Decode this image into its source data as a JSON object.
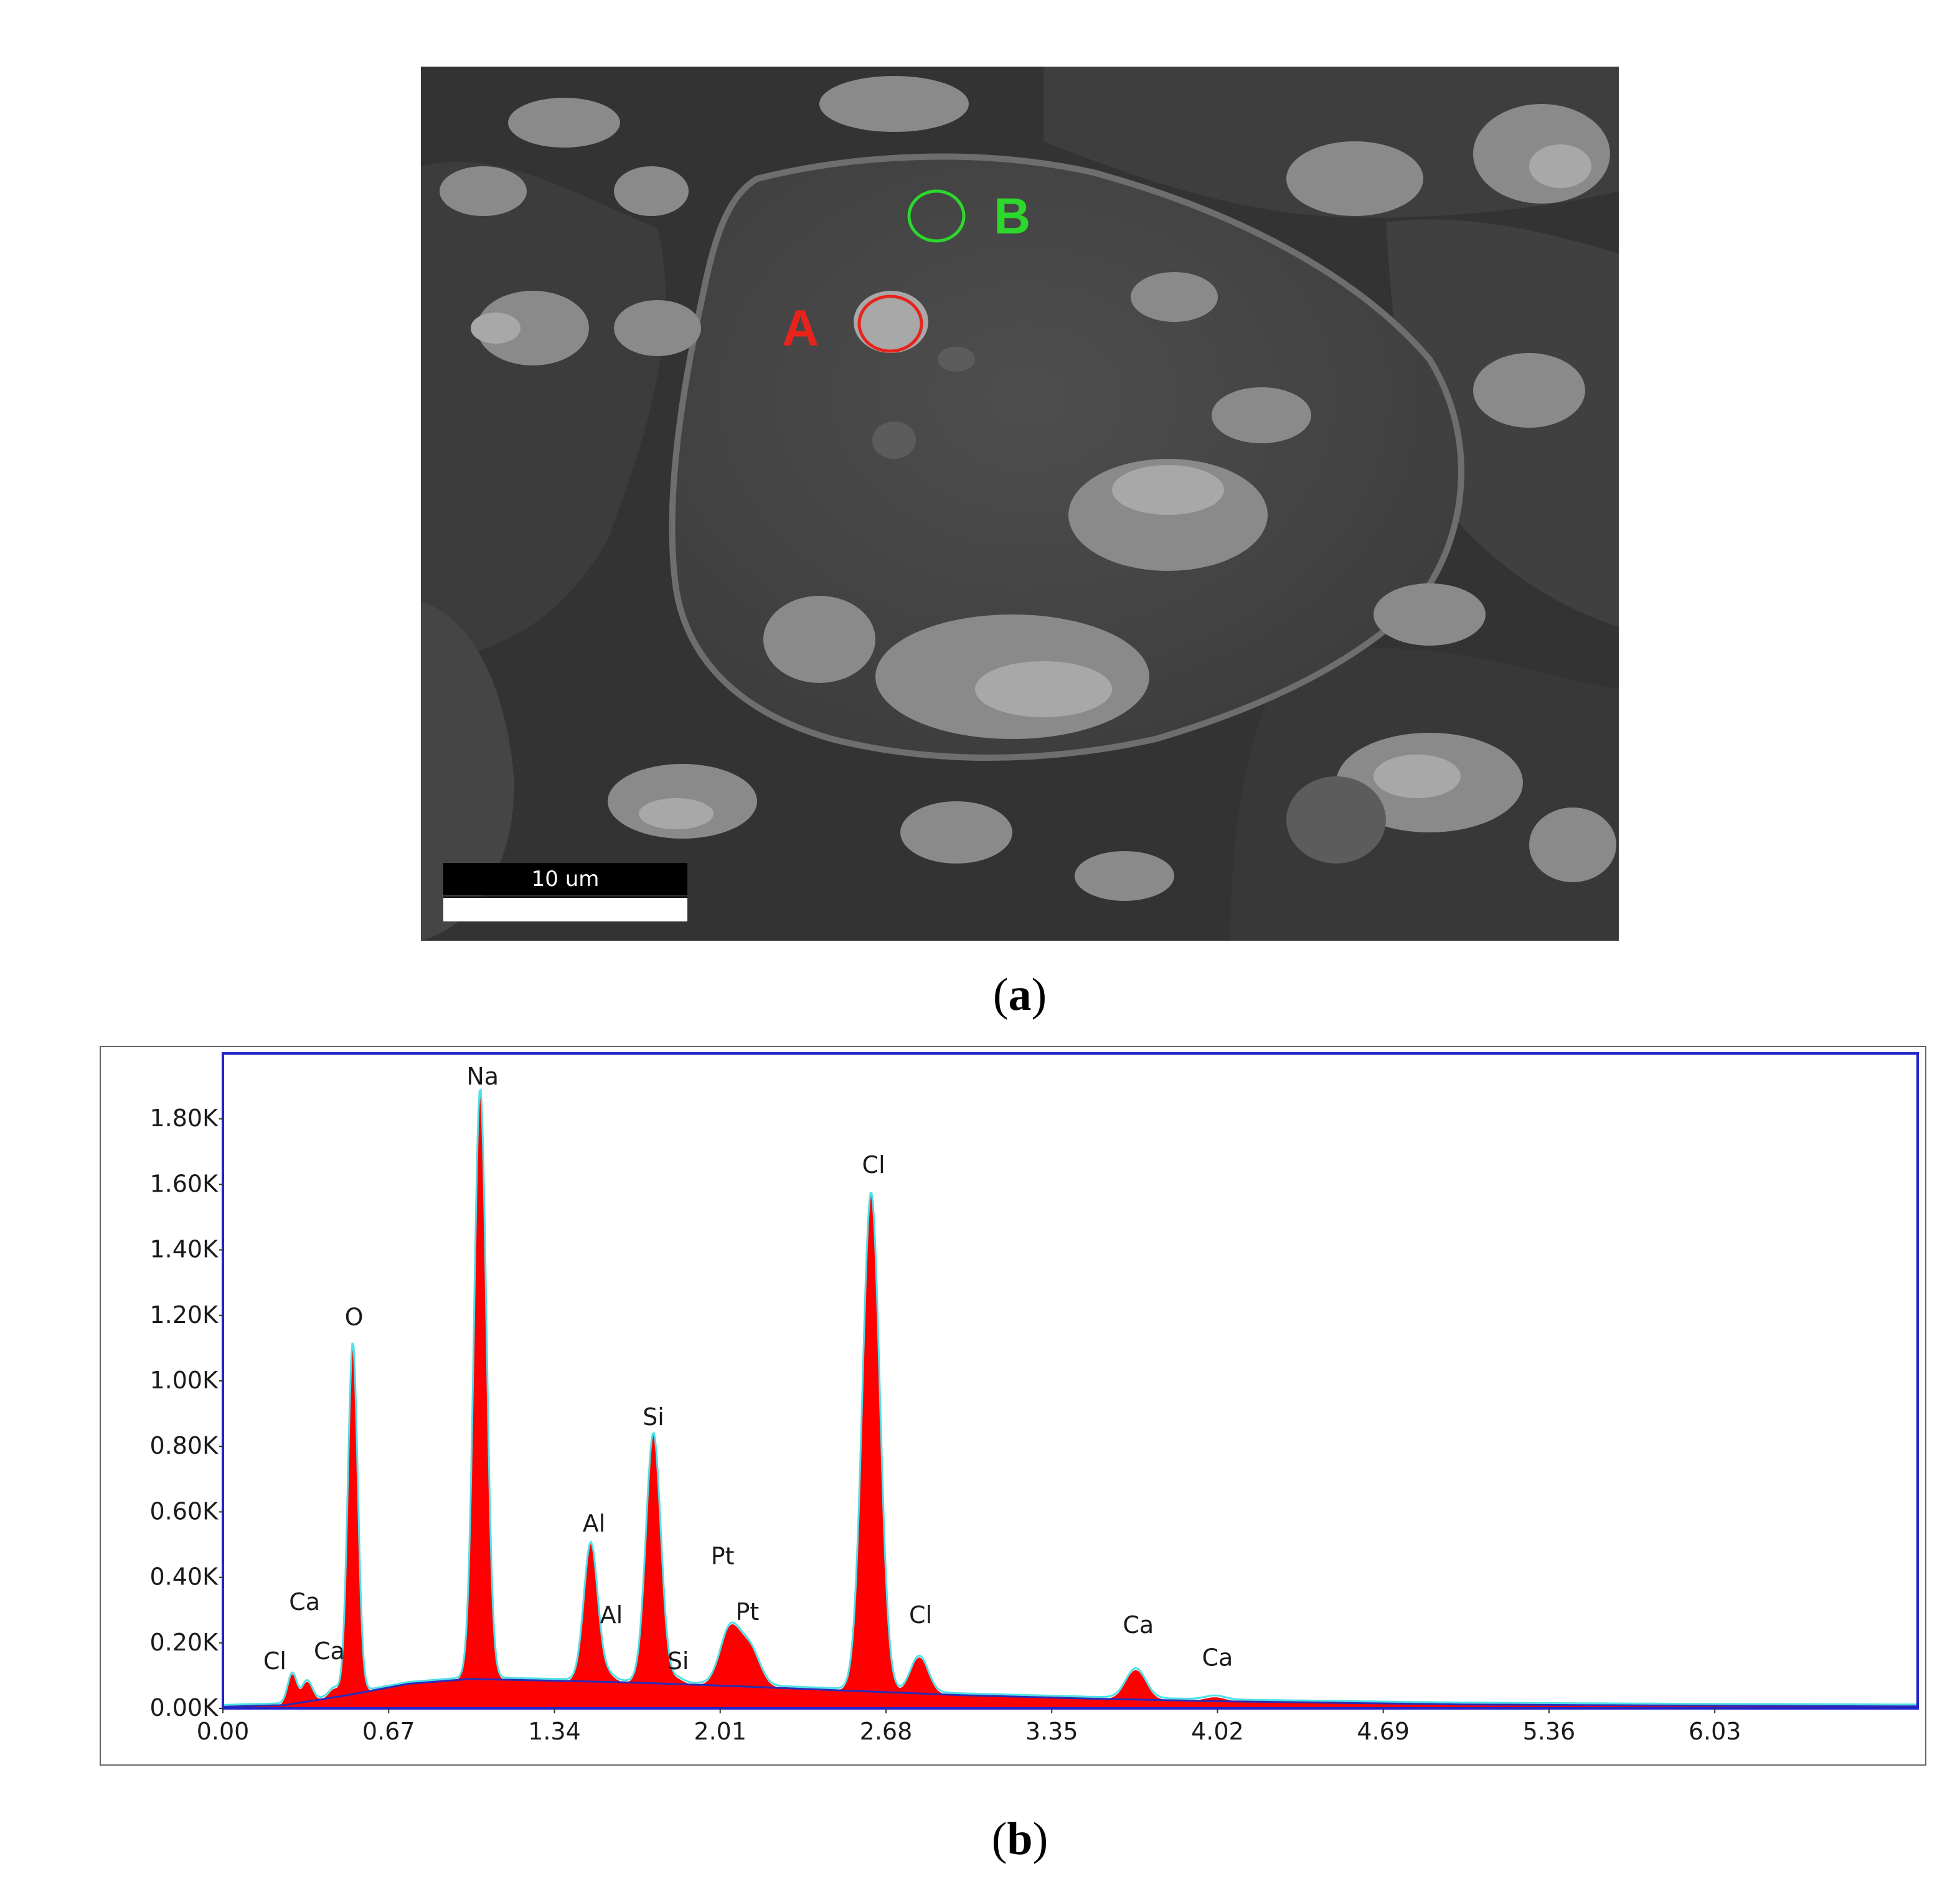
{
  "figure": {
    "panel_a_label": "a",
    "panel_b_label": "b"
  },
  "sem_image": {
    "scale_bar_label": "10 um",
    "points": [
      {
        "label": "A",
        "color": "#e8231c"
      },
      {
        "label": "B",
        "color": "#2bd82b"
      }
    ]
  },
  "chart_data": {
    "type": "area",
    "xlabel": "",
    "ylabel": "",
    "xlim": [
      0,
      6.85
    ],
    "ylim": [
      0,
      2000
    ],
    "x_ticks": [
      {
        "value": 0.0,
        "label": "0.00"
      },
      {
        "value": 0.67,
        "label": "0.67"
      },
      {
        "value": 1.34,
        "label": "1.34"
      },
      {
        "value": 2.01,
        "label": "2.01"
      },
      {
        "value": 2.68,
        "label": "2.68"
      },
      {
        "value": 3.35,
        "label": "3.35"
      },
      {
        "value": 4.02,
        "label": "4.02"
      },
      {
        "value": 4.69,
        "label": "4.69"
      },
      {
        "value": 5.36,
        "label": "5.36"
      },
      {
        "value": 6.03,
        "label": "6.03"
      }
    ],
    "y_ticks": [
      {
        "value": 0,
        "label": "0.00K"
      },
      {
        "value": 200,
        "label": "0.20K"
      },
      {
        "value": 400,
        "label": "0.40K"
      },
      {
        "value": 600,
        "label": "0.60K"
      },
      {
        "value": 800,
        "label": "0.80K"
      },
      {
        "value": 1000,
        "label": "1.00K"
      },
      {
        "value": 1200,
        "label": "1.20K"
      },
      {
        "value": 1400,
        "label": "1.40K"
      },
      {
        "value": 1600,
        "label": "1.60K"
      },
      {
        "value": 1800,
        "label": "1.80K"
      }
    ],
    "peaks": [
      {
        "element": "Cl",
        "energy": 0.28,
        "counts": 90,
        "width": 0.018
      },
      {
        "element": "Ca",
        "energy": 0.34,
        "counts": 60,
        "width": 0.02
      },
      {
        "element": "Ca",
        "energy": 0.45,
        "counts": 25,
        "width": 0.02
      },
      {
        "element": "O",
        "energy": 0.525,
        "counts": 1070,
        "width": 0.02
      },
      {
        "element": "Na",
        "energy": 1.04,
        "counts": 1800,
        "width": 0.025
      },
      {
        "element": "Al",
        "energy": 1.487,
        "counts": 420,
        "width": 0.028
      },
      {
        "element": "Al",
        "energy": 1.557,
        "counts": 20,
        "width": 0.025
      },
      {
        "element": "Si",
        "energy": 1.74,
        "counts": 760,
        "width": 0.03
      },
      {
        "element": "Si",
        "energy": 1.836,
        "counts": 15,
        "width": 0.025
      },
      {
        "element": "Pt",
        "energy": 2.05,
        "counts": 170,
        "width": 0.04
      },
      {
        "element": "Pt",
        "energy": 2.13,
        "counts": 110,
        "width": 0.04
      },
      {
        "element": "Cl",
        "energy": 2.62,
        "counts": 1520,
        "width": 0.035
      },
      {
        "element": "Cl",
        "energy": 2.815,
        "counts": 110,
        "width": 0.035
      },
      {
        "element": "Ca",
        "energy": 3.69,
        "counts": 90,
        "width": 0.04
      },
      {
        "element": "Ca",
        "energy": 4.01,
        "counts": 12,
        "width": 0.04
      }
    ],
    "peak_labels": [
      {
        "text": "Cl",
        "energy": 0.21,
        "counts": 120
      },
      {
        "text": "Ca",
        "energy": 0.33,
        "counts": 300
      },
      {
        "text": "Ca",
        "energy": 0.43,
        "counts": 150
      },
      {
        "text": "O",
        "energy": 0.53,
        "counts": 1170
      },
      {
        "text": "Na",
        "energy": 1.05,
        "counts": 1905
      },
      {
        "text": "Al",
        "energy": 1.5,
        "counts": 540
      },
      {
        "text": "Al",
        "energy": 1.57,
        "counts": 260
      },
      {
        "text": "Si",
        "energy": 1.74,
        "counts": 865
      },
      {
        "text": "Si",
        "energy": 1.84,
        "counts": 120
      },
      {
        "text": "Pt",
        "energy": 2.02,
        "counts": 440
      },
      {
        "text": "Pt",
        "energy": 2.12,
        "counts": 270
      },
      {
        "text": "Cl",
        "energy": 2.63,
        "counts": 1635
      },
      {
        "text": "Cl",
        "energy": 2.82,
        "counts": 260
      },
      {
        "text": "Ca",
        "energy": 3.7,
        "counts": 230
      },
      {
        "text": "Ca",
        "energy": 4.02,
        "counts": 130
      }
    ],
    "background": [
      {
        "energy": 0.0,
        "counts": 5
      },
      {
        "energy": 0.25,
        "counts": 10
      },
      {
        "energy": 0.5,
        "counts": 40
      },
      {
        "energy": 0.75,
        "counts": 75
      },
      {
        "energy": 1.0,
        "counts": 90
      },
      {
        "energy": 1.3,
        "counts": 85
      },
      {
        "energy": 1.6,
        "counts": 80
      },
      {
        "energy": 2.0,
        "counts": 70
      },
      {
        "energy": 2.5,
        "counts": 55
      },
      {
        "energy": 3.0,
        "counts": 40
      },
      {
        "energy": 3.5,
        "counts": 30
      },
      {
        "energy": 4.0,
        "counts": 22
      },
      {
        "energy": 5.0,
        "counts": 12
      },
      {
        "energy": 6.0,
        "counts": 8
      },
      {
        "energy": 6.85,
        "counts": 6
      }
    ],
    "colors": {
      "fill": "#ff0000",
      "fit": "#4ee0e8",
      "background": "#2b2bb5",
      "frame": "#2323c8"
    }
  }
}
